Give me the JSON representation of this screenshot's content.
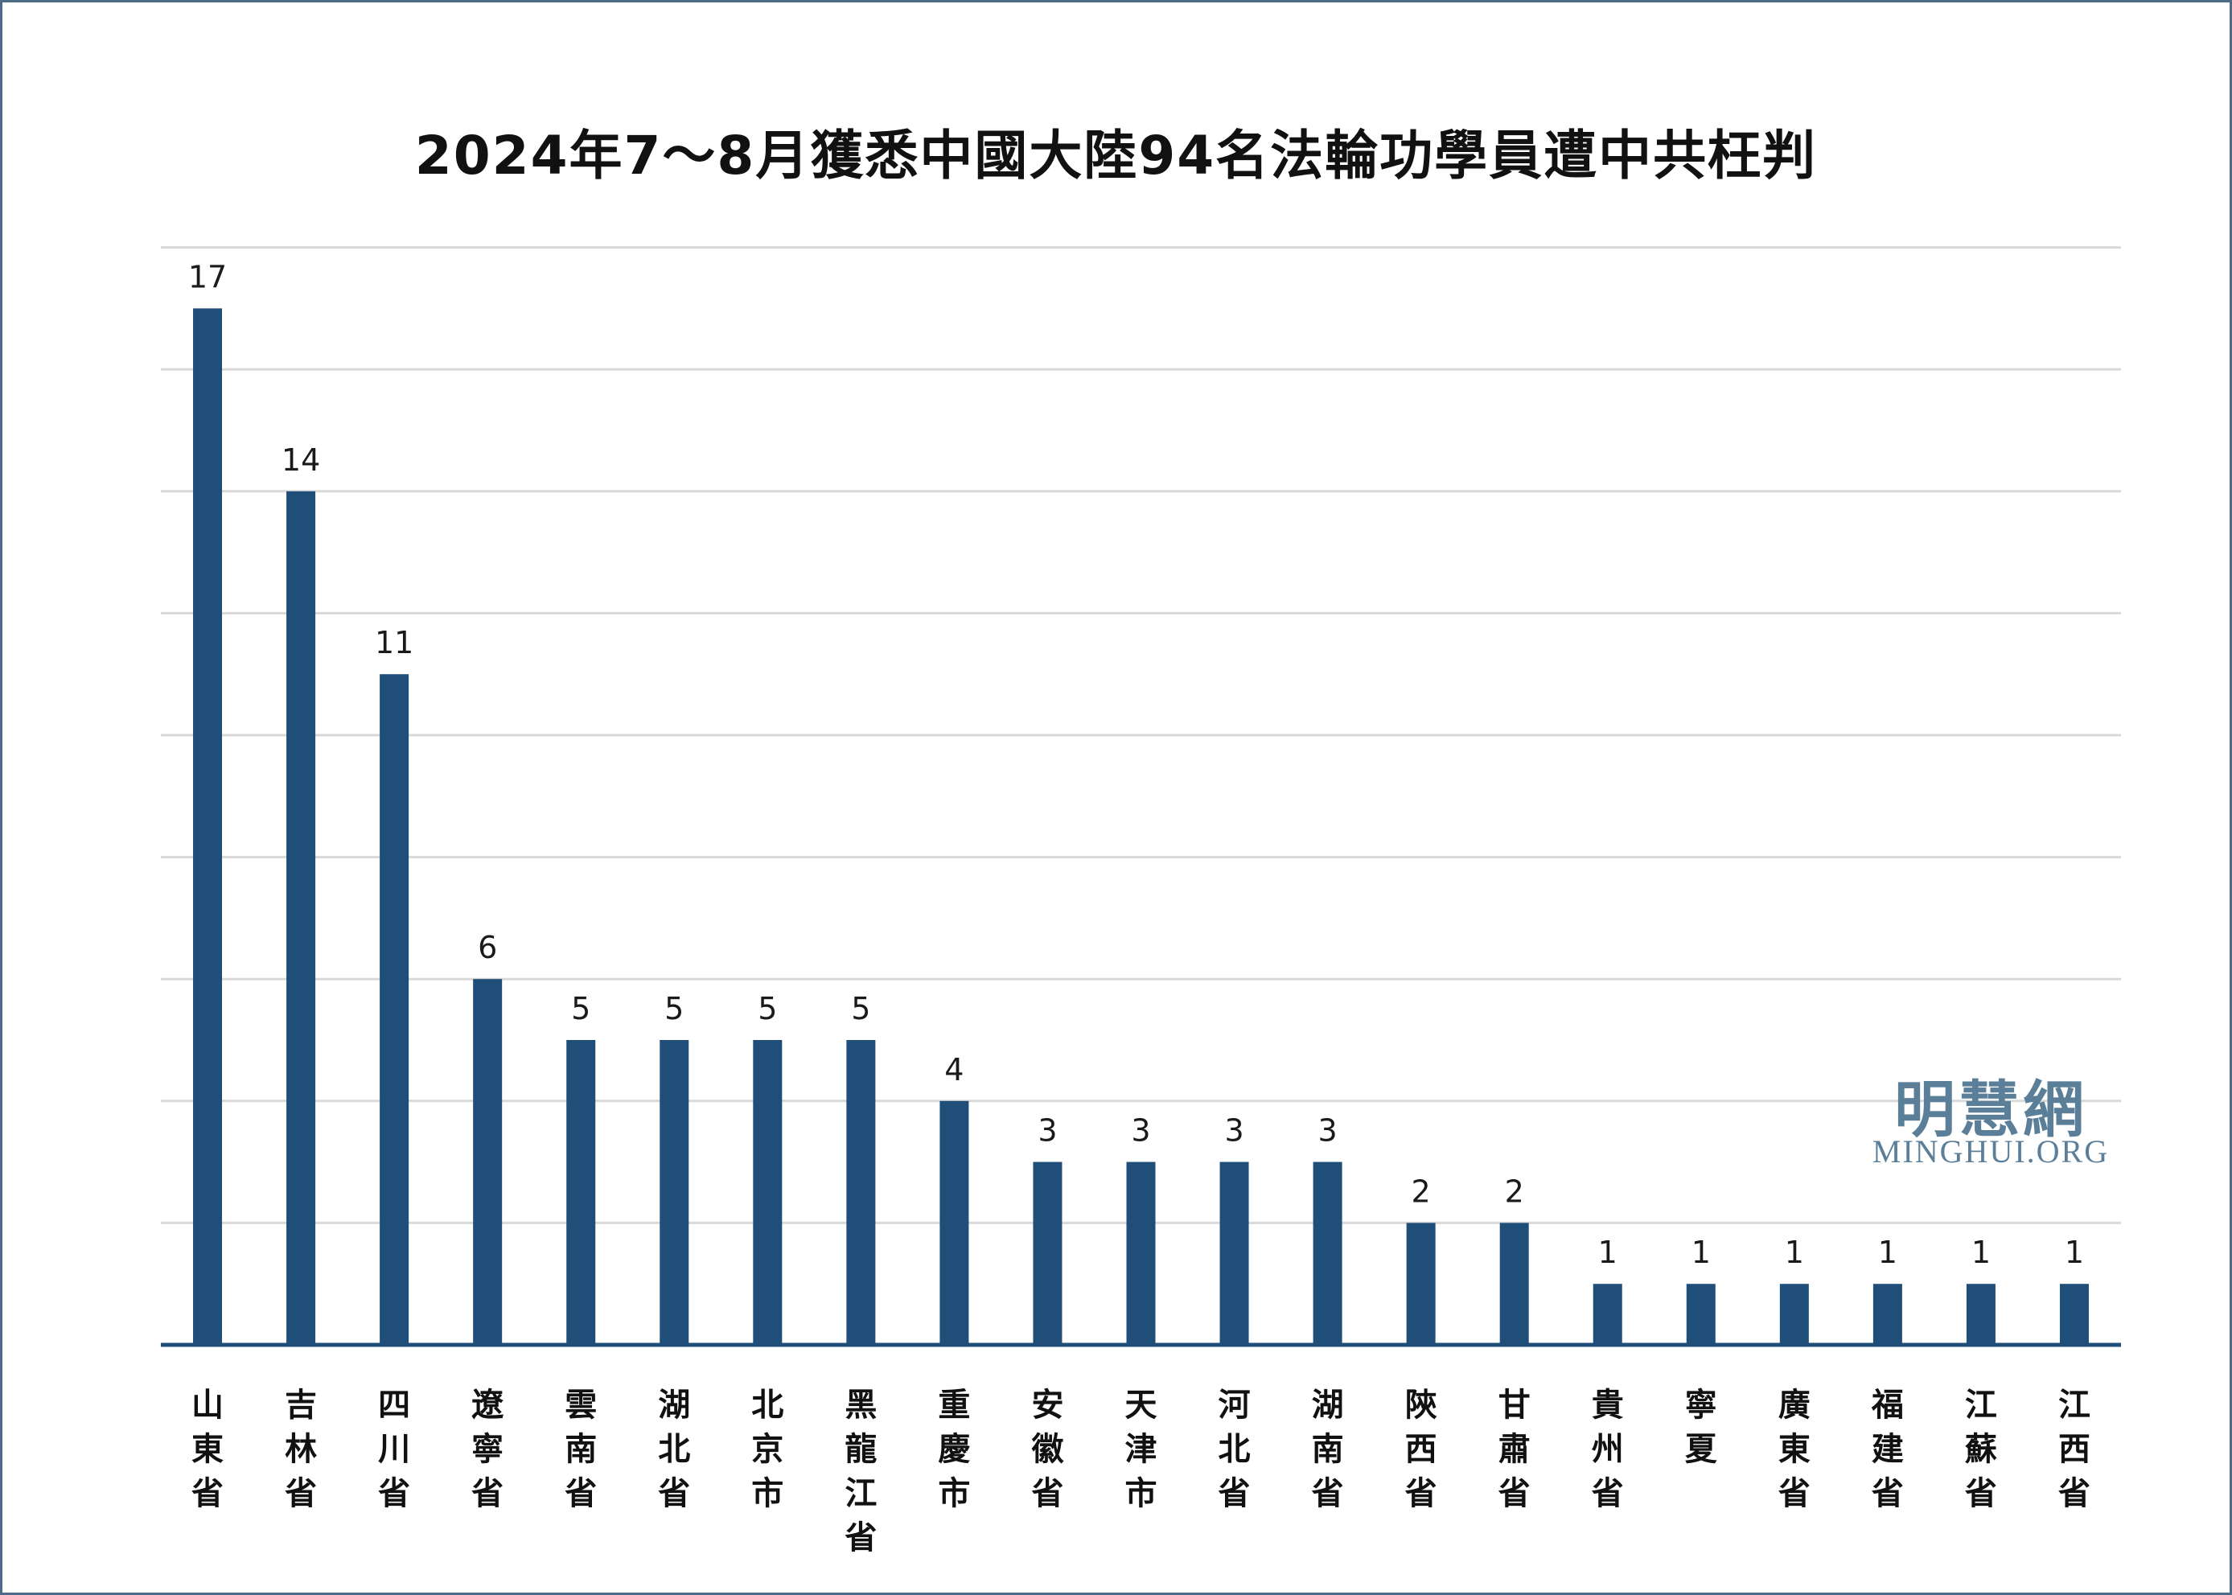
{
  "chart_data": {
    "type": "bar",
    "title": "2024年7～8月獲悉中國大陸94名法輪功學員遭中共枉判",
    "xlabel": "",
    "ylabel": "",
    "categories": [
      "山東省",
      "吉林省",
      "四川省",
      "遼寧省",
      "雲南省",
      "湖北省",
      "北京市",
      "黑龍江省",
      "重慶市",
      "安徽省",
      "天津市",
      "河北省",
      "湖南省",
      "陝西省",
      "甘肅省",
      "貴州省",
      "寧夏",
      "廣東省",
      "福建省",
      "江蘇省",
      "江西省"
    ],
    "values": [
      17,
      14,
      11,
      6,
      5,
      5,
      5,
      5,
      4,
      3,
      3,
      3,
      3,
      2,
      2,
      1,
      1,
      1,
      1,
      1,
      1
    ],
    "ylim": [
      0,
      18
    ],
    "grid_step": 2,
    "grid": true,
    "bar_color": "#1f4e79",
    "axis_color": "#1f4e79",
    "grid_color": "#d9d9d9"
  },
  "watermark": {
    "cn": "明慧網",
    "en": "MINGHUI.ORG",
    "color": "#5c7f99"
  },
  "frame_color": "#4d6a86"
}
